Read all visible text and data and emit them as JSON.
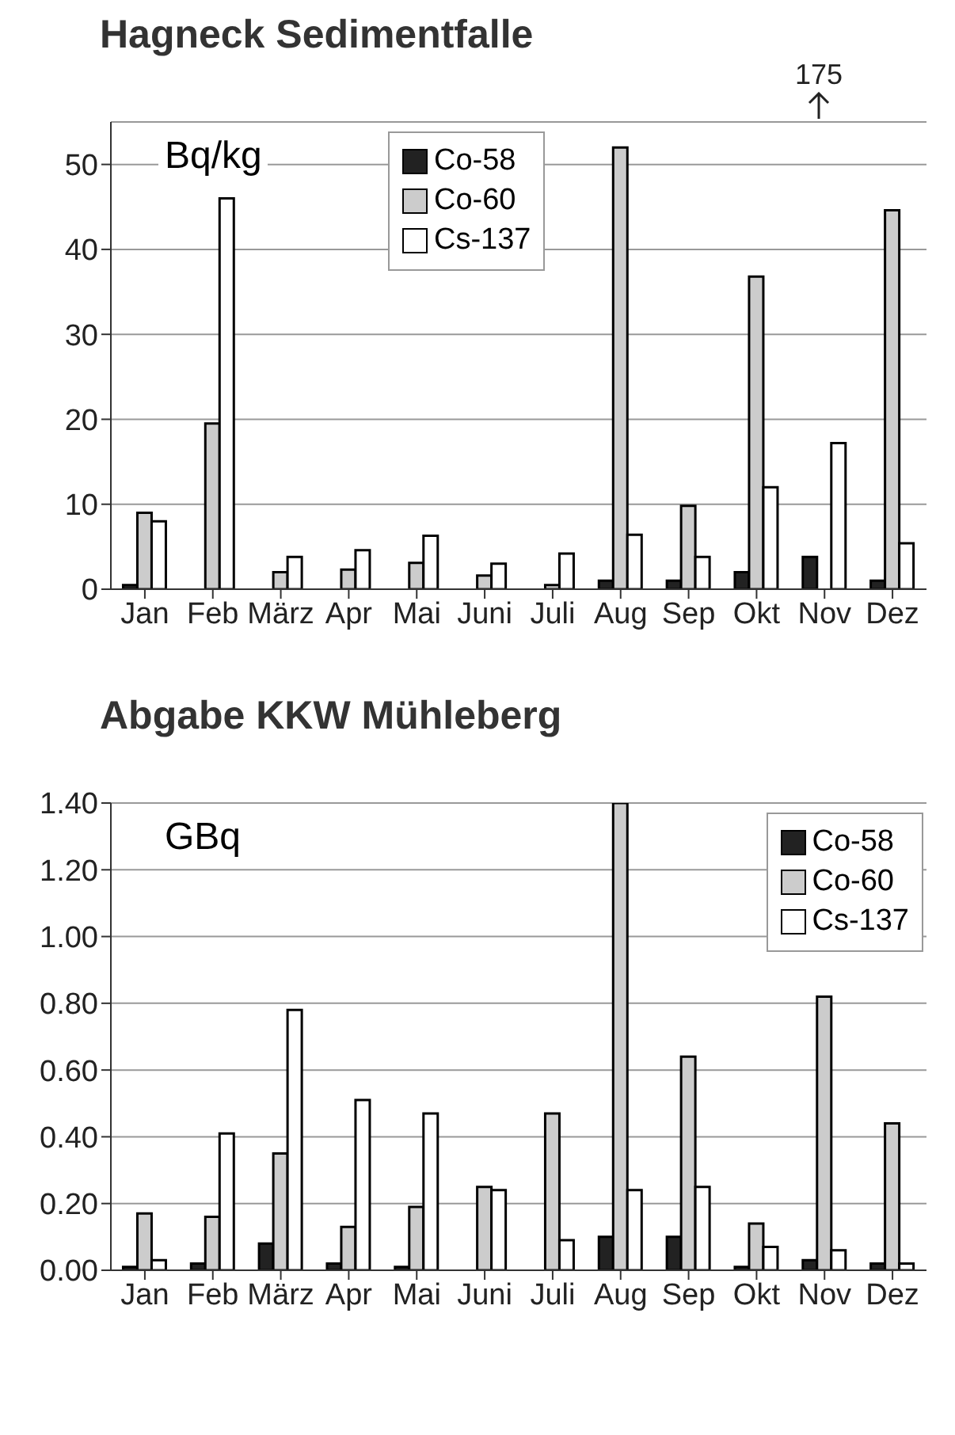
{
  "chart_data": [
    {
      "type": "bar",
      "title": "Hagneck Sedimentfalle",
      "ylabel": "Bq/kg",
      "categories": [
        "Jan",
        "Feb",
        "März",
        "Apr",
        "Mai",
        "Juni",
        "Juli",
        "Aug",
        "Sep",
        "Okt",
        "Nov",
        "Dez"
      ],
      "series": [
        {
          "name": "Co-58",
          "color": "#222222",
          "values": [
            0.5,
            0,
            0,
            0,
            0,
            0,
            0,
            1,
            1,
            2,
            3.8,
            1
          ]
        },
        {
          "name": "Co-60",
          "color": "#cccccc",
          "values": [
            9,
            19.5,
            2,
            2.3,
            3.1,
            1.6,
            0.5,
            52,
            9.8,
            36.8,
            null,
            44.6
          ]
        },
        {
          "name": "Cs-137",
          "color": "#ffffff",
          "values": [
            8,
            46,
            3.8,
            4.6,
            6.3,
            3,
            4.2,
            6.4,
            3.8,
            12,
            17.2,
            5.4
          ]
        }
      ],
      "ylim": [
        0,
        55
      ],
      "yticks": [
        0,
        10,
        20,
        30,
        40,
        50
      ],
      "grid": "y",
      "legend": "top",
      "annotations": [
        "175"
      ]
    },
    {
      "type": "bar",
      "title": "Abgabe  KKW  Mühleberg",
      "ylabel": "GBq",
      "categories": [
        "Jan",
        "Feb",
        "März",
        "Apr",
        "Mai",
        "Juni",
        "Juli",
        "Aug",
        "Sep",
        "Okt",
        "Nov",
        "Dez"
      ],
      "series": [
        {
          "name": "Co-58",
          "color": "#222222",
          "values": [
            0.01,
            0.02,
            0.08,
            0.02,
            0.01,
            0,
            0,
            0.1,
            0.1,
            0.01,
            0.03,
            0.02
          ]
        },
        {
          "name": "Co-60",
          "color": "#cccccc",
          "values": [
            0.17,
            0.16,
            0.35,
            0.13,
            0.19,
            0.25,
            0.47,
            1.4,
            0.64,
            0.14,
            0.82,
            0.44
          ]
        },
        {
          "name": "Cs-137",
          "color": "#ffffff",
          "values": [
            0.03,
            0.41,
            0.78,
            0.51,
            0.47,
            0.24,
            0.09,
            0.24,
            0.25,
            0.07,
            0.06,
            0.02
          ]
        }
      ],
      "ylim": [
        0,
        1.4
      ],
      "yticks": [
        {
          "value": 0,
          "label": "0.00"
        },
        {
          "value": 0.2,
          "label": "0.20"
        },
        {
          "value": 0.4,
          "label": "0.40"
        },
        {
          "value": 0.6,
          "label": "0.60"
        },
        {
          "value": 0.8,
          "label": "0.80"
        },
        {
          "value": 1.0,
          "label": "1.00"
        },
        {
          "value": 1.2,
          "label": "1.20"
        },
        {
          "value": 1.4,
          "label": "1.40"
        }
      ],
      "grid": "y",
      "legend": "top right"
    }
  ]
}
